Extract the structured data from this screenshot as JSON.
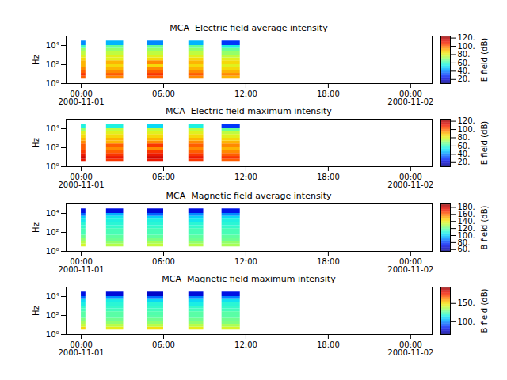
{
  "chart_data": [
    {
      "type": "heatmap",
      "title": "MCA  Electric field average intensity",
      "y_label": "Hz",
      "colorbar_label": "E field (dB)",
      "log": "y",
      "xlim": [
        "2000-10-31T22:54",
        "2000-11-02T01:34"
      ],
      "xticks": [
        {
          "value": "2000-11-01T00:00",
          "label": "00:00\n2000-11-01"
        },
        {
          "value": "2000-11-01T06:00",
          "label": "06:00"
        },
        {
          "value": "2000-11-01T12:00",
          "label": "12:00"
        },
        {
          "value": "2000-11-01T18:00",
          "label": "18:00"
        },
        {
          "value": "2000-11-02T00:00",
          "label": "00:00\n2000-11-02"
        }
      ],
      "ylim": [
        1,
        100000
      ],
      "yticks": [
        {
          "value": 1,
          "label": "10⁰"
        },
        {
          "value": 100,
          "label": "10²"
        },
        {
          "value": 10000,
          "label": "10⁴"
        }
      ],
      "x_bins": [
        [
          "2000-11-01T00:00",
          "2000-11-01T00:20"
        ],
        [
          "2000-11-01T01:50",
          "2000-11-01T03:05"
        ],
        [
          "2000-11-01T04:50",
          "2000-11-01T06:00"
        ],
        [
          "2000-11-01T07:50",
          "2000-11-01T08:55"
        ],
        [
          "2000-11-01T10:15",
          "2000-11-01T11:35"
        ]
      ],
      "y_bins": [
        3,
        6,
        12,
        25,
        50,
        100,
        250,
        500,
        1000,
        2500,
        5000,
        10000,
        30000
      ],
      "cells": [
        [
          100,
          105,
          100,
          95,
          90,
          90,
          85,
          80,
          75,
          70,
          60,
          40
        ],
        [
          95,
          100,
          95,
          90,
          85,
          90,
          80,
          80,
          75,
          70,
          65,
          45
        ],
        [
          100,
          105,
          100,
          95,
          85,
          95,
          85,
          80,
          75,
          70,
          65,
          40
        ],
        [
          95,
          100,
          95,
          90,
          85,
          90,
          85,
          80,
          75,
          70,
          65,
          45
        ],
        [
          90,
          95,
          90,
          85,
          80,
          85,
          80,
          75,
          70,
          65,
          55,
          30
        ]
      ],
      "colorbar_range": [
        10,
        125
      ],
      "colorbar_ticks": [
        {
          "value": 20,
          "label": "20."
        },
        {
          "value": 40,
          "label": "40."
        },
        {
          "value": 60,
          "label": "60."
        },
        {
          "value": 80,
          "label": "80."
        },
        {
          "value": 100,
          "label": "100."
        },
        {
          "value": 120,
          "label": "120."
        }
      ]
    },
    {
      "type": "heatmap",
      "title": "MCA  Electric field maximum intensity",
      "y_label": "Hz",
      "colorbar_label": "E field (dB)",
      "log": "y",
      "xlim": [
        "2000-10-31T22:54",
        "2000-11-02T01:34"
      ],
      "xticks": [
        {
          "value": "2000-11-01T00:00",
          "label": "00:00\n2000-11-01"
        },
        {
          "value": "2000-11-01T06:00",
          "label": "06:00"
        },
        {
          "value": "2000-11-01T12:00",
          "label": "12:00"
        },
        {
          "value": "2000-11-01T18:00",
          "label": "18:00"
        },
        {
          "value": "2000-11-02T00:00",
          "label": "00:00\n2000-11-02"
        }
      ],
      "ylim": [
        1,
        100000
      ],
      "yticks": [
        {
          "value": 1,
          "label": "10⁰"
        },
        {
          "value": 100,
          "label": "10²"
        },
        {
          "value": 10000,
          "label": "10⁴"
        }
      ],
      "x_bins": [
        [
          "2000-11-01T00:00",
          "2000-11-01T00:20"
        ],
        [
          "2000-11-01T01:50",
          "2000-11-01T03:05"
        ],
        [
          "2000-11-01T04:50",
          "2000-11-01T06:00"
        ],
        [
          "2000-11-01T07:50",
          "2000-11-01T08:55"
        ],
        [
          "2000-11-01T10:15",
          "2000-11-01T11:35"
        ]
      ],
      "y_bins": [
        3,
        6,
        12,
        25,
        50,
        100,
        250,
        500,
        1000,
        2500,
        5000,
        10000,
        30000
      ],
      "cells": [
        [
          110,
          115,
          110,
          105,
          100,
          100,
          95,
          90,
          85,
          80,
          70,
          55
        ],
        [
          105,
          110,
          105,
          100,
          95,
          100,
          90,
          90,
          85,
          80,
          75,
          55
        ],
        [
          110,
          115,
          110,
          105,
          95,
          105,
          95,
          90,
          85,
          80,
          75,
          50
        ],
        [
          105,
          110,
          105,
          100,
          95,
          100,
          95,
          90,
          85,
          80,
          75,
          55
        ],
        [
          100,
          105,
          100,
          95,
          90,
          95,
          90,
          85,
          80,
          75,
          65,
          30
        ]
      ],
      "colorbar_range": [
        10,
        125
      ],
      "colorbar_ticks": [
        {
          "value": 20,
          "label": "20."
        },
        {
          "value": 40,
          "label": "40."
        },
        {
          "value": 60,
          "label": "60."
        },
        {
          "value": 80,
          "label": "80."
        },
        {
          "value": 100,
          "label": "100."
        },
        {
          "value": 120,
          "label": "120."
        }
      ]
    },
    {
      "type": "heatmap",
      "title": "MCA  Magnetic field average intensity",
      "y_label": "Hz",
      "colorbar_label": "B field (dB)",
      "log": "y",
      "xlim": [
        "2000-10-31T22:54",
        "2000-11-02T01:34"
      ],
      "xticks": [
        {
          "value": "2000-11-01T00:00",
          "label": "00:00\n2000-11-01"
        },
        {
          "value": "2000-11-01T06:00",
          "label": "06:00"
        },
        {
          "value": "2000-11-01T12:00",
          "label": "12:00"
        },
        {
          "value": "2000-11-01T18:00",
          "label": "18:00"
        },
        {
          "value": "2000-11-02T00:00",
          "label": "00:00\n2000-11-02"
        }
      ],
      "ylim": [
        1,
        100000
      ],
      "yticks": [
        {
          "value": 1,
          "label": "10⁰"
        },
        {
          "value": 100,
          "label": "10²"
        },
        {
          "value": 10000,
          "label": "10⁴"
        }
      ],
      "x_bins": [
        [
          "2000-11-01T00:00",
          "2000-11-01T00:20"
        ],
        [
          "2000-11-01T01:50",
          "2000-11-01T03:05"
        ],
        [
          "2000-11-01T04:50",
          "2000-11-01T06:00"
        ],
        [
          "2000-11-01T07:50",
          "2000-11-01T08:55"
        ],
        [
          "2000-11-01T10:15",
          "2000-11-01T11:35"
        ]
      ],
      "y_bins": [
        3,
        6,
        12,
        25,
        50,
        100,
        250,
        500,
        1000,
        2500,
        5000,
        10000,
        30000
      ],
      "cells": [
        [
          135,
          130,
          125,
          120,
          115,
          115,
          112,
          110,
          105,
          100,
          85,
          70
        ],
        [
          130,
          125,
          120,
          118,
          115,
          115,
          112,
          110,
          108,
          105,
          95,
          70
        ],
        [
          132,
          128,
          122,
          118,
          115,
          115,
          112,
          110,
          108,
          100,
          85,
          68
        ],
        [
          130,
          125,
          120,
          118,
          115,
          115,
          112,
          110,
          105,
          100,
          90,
          70
        ],
        [
          128,
          125,
          120,
          118,
          115,
          115,
          112,
          110,
          108,
          102,
          90,
          72
        ]
      ],
      "colorbar_range": [
        55,
        190
      ],
      "colorbar_ticks": [
        {
          "value": 60,
          "label": "60."
        },
        {
          "value": 80,
          "label": "80."
        },
        {
          "value": 100,
          "label": "100."
        },
        {
          "value": 120,
          "label": "120."
        },
        {
          "value": 140,
          "label": "140."
        },
        {
          "value": 160,
          "label": "160."
        },
        {
          "value": 180,
          "label": "180."
        }
      ]
    },
    {
      "type": "heatmap",
      "title": "MCA  Magnetic field maximum intensity",
      "y_label": "Hz",
      "colorbar_label": "B field (dB)",
      "log": "y",
      "xlim": [
        "2000-10-31T22:54",
        "2000-11-02T01:34"
      ],
      "xticks": [
        {
          "value": "2000-11-01T00:00",
          "label": "00:00\n2000-11-01"
        },
        {
          "value": "2000-11-01T06:00",
          "label": "06:00"
        },
        {
          "value": "2000-11-01T12:00",
          "label": "12:00"
        },
        {
          "value": "2000-11-01T18:00",
          "label": "18:00"
        },
        {
          "value": "2000-11-02T00:00",
          "label": "00:00\n2000-11-02"
        }
      ],
      "ylim": [
        1,
        100000
      ],
      "yticks": [
        {
          "value": 1,
          "label": "10⁰"
        },
        {
          "value": 100,
          "label": "10²"
        },
        {
          "value": 10000,
          "label": "10⁴"
        }
      ],
      "x_bins": [
        [
          "2000-11-01T00:00",
          "2000-11-01T00:20"
        ],
        [
          "2000-11-01T01:50",
          "2000-11-01T03:05"
        ],
        [
          "2000-11-01T04:50",
          "2000-11-01T06:00"
        ],
        [
          "2000-11-01T07:50",
          "2000-11-01T08:55"
        ],
        [
          "2000-11-01T10:15",
          "2000-11-01T11:35"
        ]
      ],
      "y_bins": [
        3,
        6,
        12,
        25,
        50,
        100,
        250,
        500,
        1000,
        2500,
        5000,
        10000,
        30000
      ],
      "cells": [
        [
          150,
          140,
          135,
          130,
          125,
          125,
          122,
          120,
          115,
          110,
          95,
          80
        ],
        [
          145,
          138,
          132,
          128,
          125,
          125,
          122,
          120,
          118,
          115,
          100,
          78
        ],
        [
          148,
          138,
          132,
          128,
          125,
          124,
          122,
          120,
          118,
          110,
          95,
          75
        ],
        [
          145,
          138,
          132,
          128,
          125,
          125,
          122,
          120,
          115,
          110,
          98,
          78
        ],
        [
          142,
          136,
          130,
          128,
          125,
          125,
          122,
          120,
          118,
          112,
          98,
          80
        ]
      ],
      "colorbar_range": [
        65,
        195
      ],
      "colorbar_ticks": [
        {
          "value": 100,
          "label": "100."
        },
        {
          "value": 150,
          "label": "150."
        }
      ]
    }
  ]
}
